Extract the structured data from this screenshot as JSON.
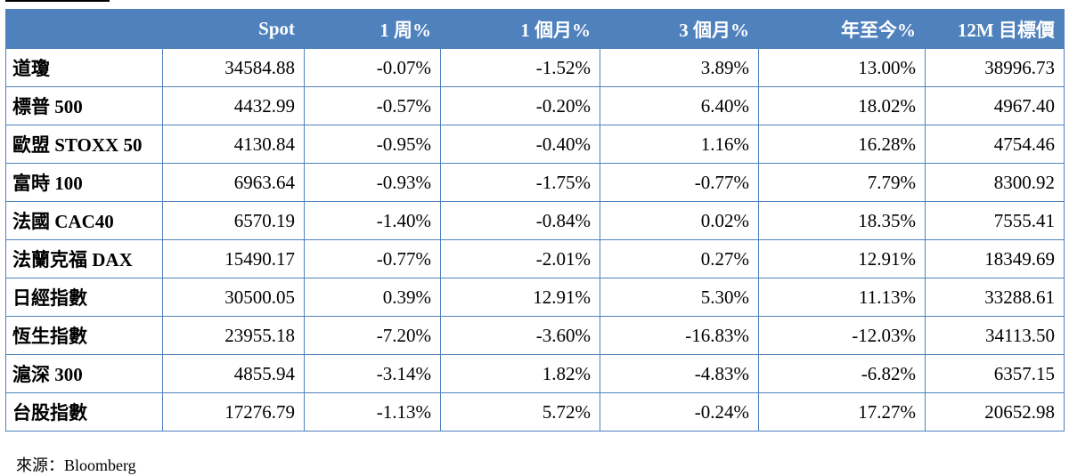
{
  "table": {
    "headers": [
      "",
      "Spot",
      "1 周%",
      "1 個月%",
      "3 個月%",
      "年至今%",
      "12M 目標價"
    ],
    "rows": [
      [
        "道瓊",
        "34584.88",
        "-0.07%",
        "-1.52%",
        "3.89%",
        "13.00%",
        "38996.73"
      ],
      [
        "標普 500",
        "4432.99",
        "-0.57%",
        "-0.20%",
        "6.40%",
        "18.02%",
        "4967.40"
      ],
      [
        "歐盟 STOXX 50",
        "4130.84",
        "-0.95%",
        "-0.40%",
        "1.16%",
        "16.28%",
        "4754.46"
      ],
      [
        "富時 100",
        "6963.64",
        "-0.93%",
        "-1.75%",
        "-0.77%",
        "7.79%",
        "8300.92"
      ],
      [
        "法國 CAC40",
        "6570.19",
        "-1.40%",
        "-0.84%",
        "0.02%",
        "18.35%",
        "7555.41"
      ],
      [
        "法蘭克福 DAX",
        "15490.17",
        "-0.77%",
        "-2.01%",
        "0.27%",
        "12.91%",
        "18349.69"
      ],
      [
        "日經指數",
        "30500.05",
        "0.39%",
        "12.91%",
        "5.30%",
        "11.13%",
        "33288.61"
      ],
      [
        "恆生指數",
        "23955.18",
        "-7.20%",
        "-3.60%",
        "-16.83%",
        "-12.03%",
        "34113.50"
      ],
      [
        "滬深 300",
        "4855.94",
        "-3.14%",
        "1.82%",
        "-4.83%",
        "-6.82%",
        "6357.15"
      ],
      [
        "台股指數",
        "17276.79",
        "-1.13%",
        "5.72%",
        "-0.24%",
        "17.27%",
        "20652.98"
      ]
    ]
  },
  "source": "來源：Bloomberg",
  "colors": {
    "header_bg": "#4f81bd",
    "header_text": "#ffffff",
    "border": "#4f81bd"
  }
}
